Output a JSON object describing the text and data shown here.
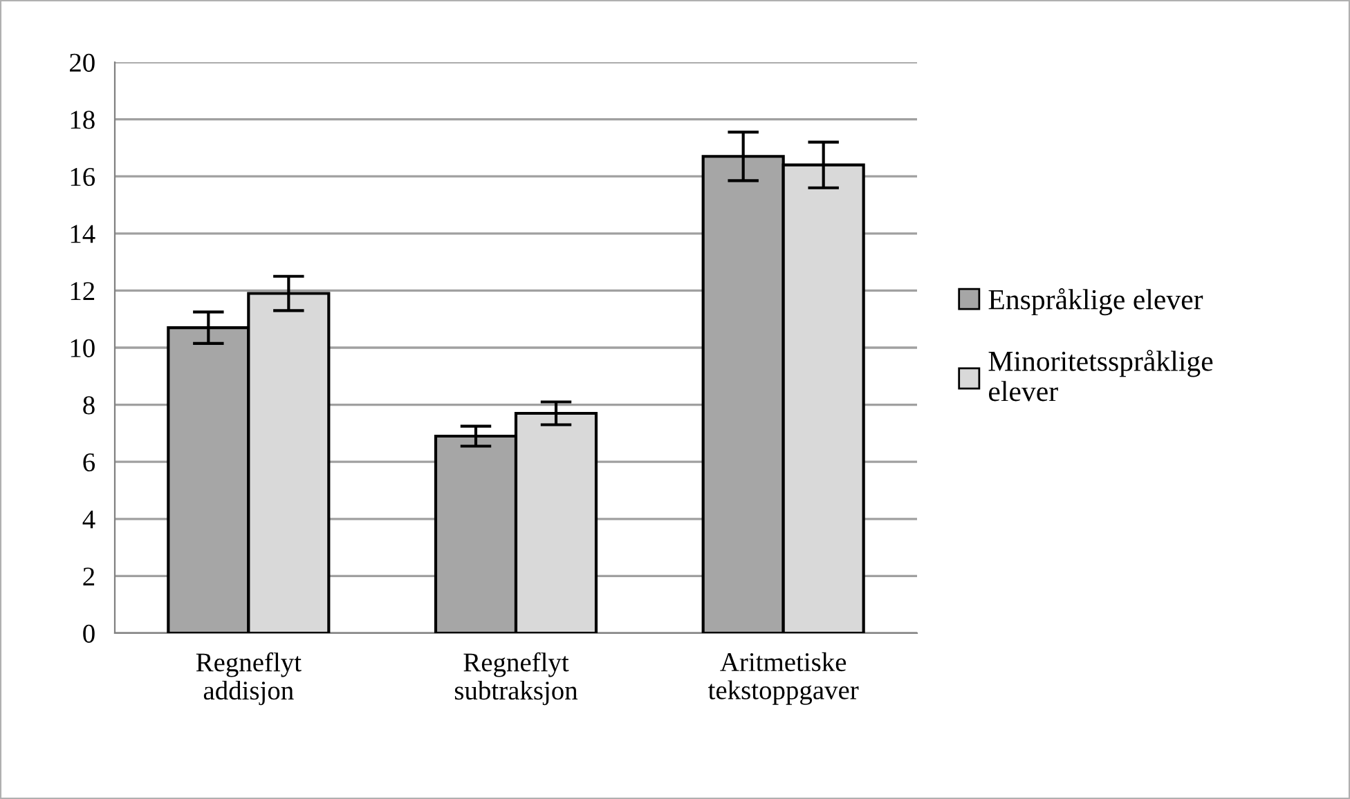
{
  "chart_data": {
    "type": "bar",
    "categories": [
      "Regneflyt addisjon",
      "Regneflyt subtraksjon",
      "Aritmetiske tekstoppgaver"
    ],
    "series": [
      {
        "name": "Enspråklige elever",
        "color": "#a6a6a6",
        "values": [
          10.7,
          6.9,
          16.7
        ],
        "errors": [
          0.55,
          0.35,
          0.85
        ]
      },
      {
        "name": "Minoritetsspråklige elever",
        "color": "#d9d9d9",
        "values": [
          11.9,
          7.7,
          16.4
        ],
        "errors": [
          0.6,
          0.4,
          0.8
        ]
      }
    ],
    "ylim": [
      0,
      20
    ],
    "yticks": [
      0,
      2,
      4,
      6,
      8,
      10,
      12,
      14,
      16,
      18,
      20
    ],
    "grid": "y",
    "legend": "right"
  }
}
